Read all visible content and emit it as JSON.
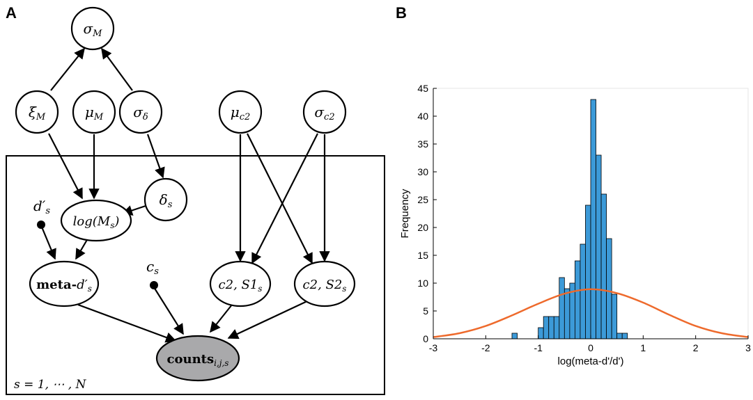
{
  "panels": {
    "a_label": "A",
    "b_label": "B"
  },
  "diagram": {
    "nodes": {
      "sigma_M": {
        "sym": "σ",
        "sub": "M"
      },
      "xi_M": {
        "sym": "ξ",
        "sub": "M"
      },
      "mu_M": {
        "sym": "μ",
        "sub": "M"
      },
      "sigma_delta": {
        "sym": "σ",
        "sub": "δ"
      },
      "mu_c2": {
        "sym": "μ",
        "sub": "c2"
      },
      "sigma_c2": {
        "sym": "σ",
        "sub": "c2"
      },
      "delta_s": {
        "sym": "δ",
        "sub": "s"
      },
      "log_M": {
        "pre": "log(M",
        "sub": "s",
        "post": ")"
      },
      "meta_d": {
        "pre": "meta-",
        "sym": "d′",
        "sub": "s"
      },
      "c2_S1": {
        "pre": "c2, S1",
        "sub": "s"
      },
      "c2_S2": {
        "pre": "c2, S2",
        "sub": "s"
      },
      "counts": {
        "pre": "counts",
        "sub": "i,j,s"
      },
      "d_prime_s": {
        "sym": "d′",
        "sub": "s"
      },
      "c_s": {
        "sym": "c",
        "sub": "s"
      }
    },
    "plate_label": "s = 1, ⋯ , N",
    "colors": {
      "observed_node": "#a9a9ab",
      "stroke": "#000000"
    }
  },
  "chart_data": {
    "type": "bar",
    "xlabel": "log(meta-d'/d')",
    "ylabel": "Frequency",
    "xlim": [
      -3,
      3
    ],
    "ylim": [
      0,
      45
    ],
    "xticks": [
      -3,
      -2,
      -1,
      0,
      1,
      2,
      3
    ],
    "yticks": [
      0,
      5,
      10,
      15,
      20,
      25,
      30,
      35,
      40,
      45
    ],
    "bin_width": 0.1,
    "bins": [
      {
        "x0": -1.5,
        "x1": -1.4,
        "count": 1
      },
      {
        "x0": -1.0,
        "x1": -0.9,
        "count": 2
      },
      {
        "x0": -0.9,
        "x1": -0.8,
        "count": 4
      },
      {
        "x0": -0.8,
        "x1": -0.7,
        "count": 4
      },
      {
        "x0": -0.7,
        "x1": -0.6,
        "count": 4
      },
      {
        "x0": -0.6,
        "x1": -0.5,
        "count": 11
      },
      {
        "x0": -0.5,
        "x1": -0.4,
        "count": 9
      },
      {
        "x0": -0.4,
        "x1": -0.3,
        "count": 10
      },
      {
        "x0": -0.3,
        "x1": -0.2,
        "count": 14
      },
      {
        "x0": -0.2,
        "x1": -0.1,
        "count": 17
      },
      {
        "x0": -0.1,
        "x1": 0.0,
        "count": 24
      },
      {
        "x0": 0.0,
        "x1": 0.1,
        "count": 43
      },
      {
        "x0": 0.1,
        "x1": 0.2,
        "count": 33
      },
      {
        "x0": 0.2,
        "x1": 0.3,
        "count": 26
      },
      {
        "x0": 0.3,
        "x1": 0.4,
        "count": 18
      },
      {
        "x0": 0.4,
        "x1": 0.5,
        "count": 8
      },
      {
        "x0": 0.5,
        "x1": 0.6,
        "count": 1
      },
      {
        "x0": 0.6,
        "x1": 0.7,
        "count": 1
      }
    ],
    "curve": {
      "x": [
        -3.0,
        -2.5,
        -2.0,
        -1.5,
        -1.0,
        -0.5,
        0.0,
        0.5,
        1.0,
        1.5,
        2.0,
        2.5,
        3.0
      ],
      "y": [
        0.3,
        1.0,
        2.3,
        4.2,
        6.3,
        8.1,
        8.9,
        8.2,
        6.5,
        4.3,
        2.3,
        1.0,
        0.3
      ]
    },
    "grid": false,
    "colors": {
      "bar_fill": "#3c9ad8",
      "bar_stroke": "#000000",
      "curve": "#ee6a2c"
    }
  }
}
